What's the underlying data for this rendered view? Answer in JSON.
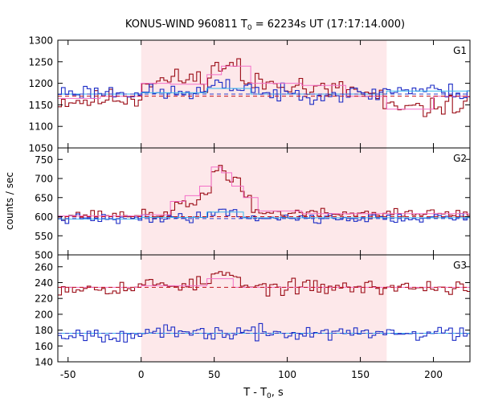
{
  "chart_data": {
    "type": "line",
    "title": "KONUS-WIND 960811 T",
    "title_sub": "0",
    "title_rest": " = 62234s UT (17:17:14.000)",
    "ylabel": "counts / sec",
    "xlabel_main": "T - T",
    "xlabel_sub": "0",
    "xlabel_rest": ", s",
    "xlim": [
      -57,
      225
    ],
    "xticks": [
      -50,
      0,
      50,
      100,
      150,
      200
    ],
    "shade_range": [
      0,
      168
    ],
    "colors": {
      "shade": "#fde8ea",
      "series_a": "#9b0c16",
      "series_b": "#1c2cc6",
      "model_a": "#f46fc8",
      "model_b": "#38b8ee",
      "bg_a": "#c0101a",
      "bg_b": "#2f3ec9"
    },
    "panels": [
      {
        "label": "G1",
        "ylim": [
          1050,
          1300
        ],
        "yticks": [
          1050,
          1100,
          1150,
          1200,
          1250,
          1300
        ],
        "background": {
          "a": 1170,
          "b": 1175
        },
        "series": [
          {
            "key": "a",
            "segments": [
              [
                -57,
                -28,
                1160
              ],
              [
                -28,
                0,
                1165
              ],
              [
                0,
                18,
                1205
              ],
              [
                18,
                47,
                1210
              ],
              [
                47,
                55,
                1235
              ],
              [
                55,
                68,
                1245
              ],
              [
                68,
                110,
                1200
              ],
              [
                110,
                150,
                1185
              ],
              [
                150,
                165,
                1172
              ],
              [
                165,
                200,
                1140
              ],
              [
                200,
                225,
                1150
              ]
            ],
            "noise": 20,
            "seed": 11
          },
          {
            "key": "b",
            "segments": [
              [
                -57,
                0,
                1180
              ],
              [
                0,
                45,
                1178
              ],
              [
                45,
                80,
                1192
              ],
              [
                80,
                165,
                1175
              ],
              [
                165,
                200,
                1185
              ],
              [
                200,
                225,
                1180
              ]
            ],
            "noise": 16,
            "seed": 23
          }
        ],
        "models": [
          {
            "key": "a",
            "steps": [
              [
                -57,
                -28,
                1165
              ],
              [
                -28,
                0,
                1170
              ],
              [
                0,
                20,
                1200
              ],
              [
                20,
                45,
                1198
              ],
              [
                45,
                55,
                1220
              ],
              [
                55,
                75,
                1240
              ],
              [
                75,
                110,
                1200
              ],
              [
                110,
                140,
                1195
              ],
              [
                140,
                168,
                1170
              ],
              [
                168,
                200,
                1140
              ],
              [
                200,
                225,
                1170
              ]
            ]
          },
          {
            "key": "b",
            "steps": [
              [
                -57,
                0,
                1175
              ],
              [
                0,
                45,
                1178
              ],
              [
                45,
                75,
                1188
              ],
              [
                75,
                168,
                1175
              ],
              [
                168,
                225,
                1182
              ]
            ]
          }
        ]
      },
      {
        "label": "G2",
        "ylim": [
          500,
          780
        ],
        "yticks": [
          500,
          550,
          600,
          650,
          700,
          750
        ],
        "background": {
          "a": 600,
          "b": 595
        },
        "series": [
          {
            "key": "a",
            "segments": [
              [
                -57,
                0,
                605
              ],
              [
                0,
                20,
                605
              ],
              [
                20,
                40,
                630
              ],
              [
                40,
                48,
                660
              ],
              [
                48,
                58,
                725
              ],
              [
                58,
                67,
                700
              ],
              [
                67,
                75,
                660
              ],
              [
                75,
                110,
                610
              ],
              [
                110,
                225,
                608
              ]
            ],
            "noise": 11,
            "seed": 37
          },
          {
            "key": "b",
            "segments": [
              [
                -57,
                0,
                594
              ],
              [
                0,
                45,
                598
              ],
              [
                45,
                65,
                615
              ],
              [
                65,
                110,
                598
              ],
              [
                110,
                225,
                596
              ]
            ],
            "noise": 11,
            "seed": 41
          }
        ],
        "models": [
          {
            "key": "a",
            "steps": [
              [
                -57,
                0,
                602
              ],
              [
                0,
                20,
                605
              ],
              [
                20,
                30,
                640
              ],
              [
                30,
                40,
                655
              ],
              [
                40,
                48,
                680
              ],
              [
                48,
                55,
                730
              ],
              [
                55,
                62,
                715
              ],
              [
                62,
                70,
                680
              ],
              [
                70,
                80,
                650
              ],
              [
                80,
                110,
                615
              ],
              [
                110,
                225,
                608
              ]
            ]
          },
          {
            "key": "b",
            "steps": [
              [
                -57,
                0,
                594
              ],
              [
                0,
                45,
                598
              ],
              [
                45,
                70,
                612
              ],
              [
                70,
                225,
                597
              ]
            ]
          }
        ]
      },
      {
        "label": "G3",
        "ylim": [
          140,
          275
        ],
        "yticks": [
          140,
          160,
          180,
          200,
          220,
          240,
          260
        ],
        "background": {
          "a": 234,
          "b": 176
        },
        "series": [
          {
            "key": "a",
            "segments": [
              [
                -57,
                0,
                234
              ],
              [
                0,
                40,
                238
              ],
              [
                40,
                50,
                242
              ],
              [
                50,
                60,
                252
              ],
              [
                60,
                68,
                245
              ],
              [
                68,
                225,
                234
              ]
            ],
            "noise": 8,
            "seed": 53
          },
          {
            "key": "b",
            "segments": [
              [
                -57,
                0,
                175
              ],
              [
                0,
                225,
                176
              ]
            ],
            "noise": 8,
            "seed": 67
          }
        ],
        "models": [
          {
            "key": "a",
            "steps": [
              [
                -57,
                0,
                234
              ],
              [
                0,
                30,
                236
              ],
              [
                30,
                45,
                236
              ],
              [
                45,
                63,
                245
              ],
              [
                63,
                225,
                234
              ]
            ]
          },
          {
            "key": "b",
            "steps": [
              [
                -57,
                225,
                176
              ]
            ]
          }
        ]
      }
    ]
  }
}
